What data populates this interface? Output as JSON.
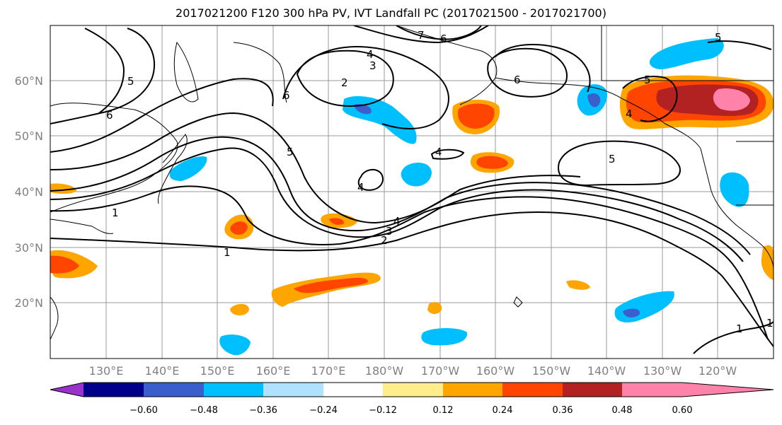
{
  "title": "2017021200 F120 300 hPa PV, IVT Landfall PC (2017021500 - 2017021700)",
  "lat_labels": [
    "60°N",
    "50°N",
    "40°N",
    "30°N",
    "20°N"
  ],
  "lon_labels": [
    "130°E",
    "140°E",
    "150°E",
    "160°E",
    "170°E",
    "180°W",
    "170°W",
    "160°W",
    "150°W",
    "140°W",
    "130°W",
    "120°W"
  ],
  "contour_labels": [
    "7",
    "6",
    "4",
    "3",
    "2",
    "5",
    "6",
    "5",
    "6",
    "6",
    "5",
    "4",
    "4",
    "5",
    "1",
    "1",
    "2",
    "3",
    "4",
    "5",
    "4",
    "1",
    "1"
  ],
  "colorbar": {
    "ticks": [
      "−0.60",
      "−0.48",
      "−0.36",
      "−0.24",
      "−0.12",
      "0.12",
      "0.24",
      "0.36",
      "0.48",
      "0.60"
    ],
    "colors": [
      "#9932cc",
      "#00008b",
      "#3a5fcd",
      "#00bfff",
      "#b0e2ff",
      "#ffffff",
      "#ffec8b",
      "#ffa500",
      "#ff4500",
      "#b22222",
      "#ff82ab"
    ]
  }
}
